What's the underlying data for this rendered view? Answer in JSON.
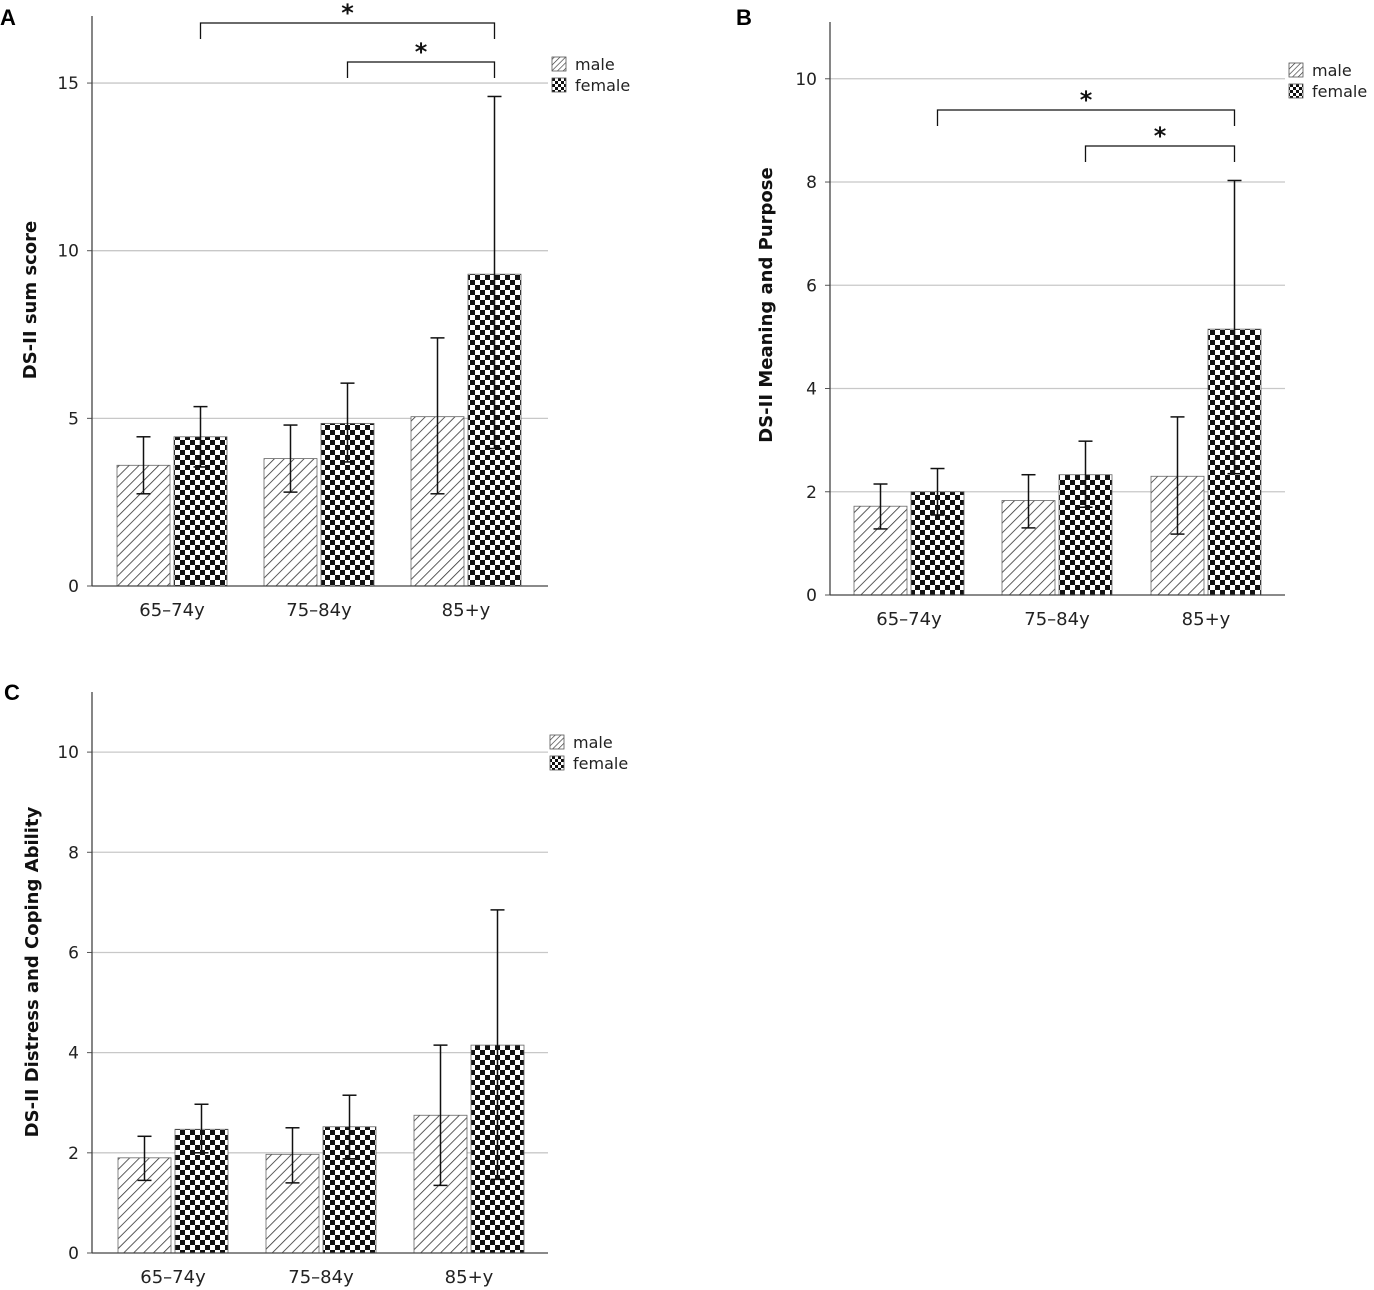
{
  "chart_data": [
    {
      "panel_label": "A",
      "type": "bar",
      "ylabel": "DS-II sum score",
      "categories": [
        "65–74y",
        "75–84y",
        "85+y"
      ],
      "ylim": [
        0,
        17
      ],
      "yticks": [
        0,
        5,
        10,
        15
      ],
      "legend": [
        "male",
        "female"
      ],
      "series": [
        {
          "name": "male",
          "pattern": "hatch",
          "values": [
            3.6,
            3.8,
            5.05
          ],
          "error_low": [
            2.75,
            2.8,
            2.75
          ],
          "error_high": [
            4.45,
            4.8,
            7.4
          ]
        },
        {
          "name": "female",
          "pattern": "checker",
          "values": [
            4.45,
            4.85,
            9.3
          ],
          "error_low": [
            3.55,
            3.7,
            4.1
          ],
          "error_high": [
            5.35,
            6.05,
            14.6
          ]
        }
      ],
      "significance": [
        {
          "from_category": 0,
          "to_category": 2,
          "label": "*"
        },
        {
          "from_category": 1,
          "to_category": 2,
          "label": "*"
        }
      ]
    },
    {
      "panel_label": "B",
      "type": "bar",
      "ylabel": "DS-II Meaning and Purpose",
      "categories": [
        "65–74y",
        "75–84y",
        "85+y"
      ],
      "ylim": [
        0,
        11.1
      ],
      "yticks": [
        0,
        2,
        4,
        6,
        8,
        10
      ],
      "legend": [
        "male",
        "female"
      ],
      "series": [
        {
          "name": "male",
          "pattern": "hatch",
          "values": [
            1.72,
            1.83,
            2.3
          ],
          "error_low": [
            1.28,
            1.3,
            1.18
          ],
          "error_high": [
            2.15,
            2.33,
            3.45
          ]
        },
        {
          "name": "female",
          "pattern": "checker",
          "values": [
            2.0,
            2.33,
            5.15
          ],
          "error_low": [
            1.55,
            1.7,
            2.35
          ],
          "error_high": [
            2.45,
            2.98,
            8.03
          ]
        }
      ],
      "significance": [
        {
          "from_category": 0,
          "to_category": 2,
          "label": "*"
        },
        {
          "from_category": 1,
          "to_category": 2,
          "label": "*"
        }
      ]
    },
    {
      "panel_label": "C",
      "type": "bar",
      "ylabel": "DS-II Distress and Coping Ability",
      "categories": [
        "65–74y",
        "75–84y",
        "85+y"
      ],
      "ylim": [
        0,
        11.2
      ],
      "yticks": [
        0,
        2,
        4,
        6,
        8,
        10
      ],
      "legend": [
        "male",
        "female"
      ],
      "series": [
        {
          "name": "male",
          "pattern": "hatch",
          "values": [
            1.9,
            1.97,
            2.75
          ],
          "error_low": [
            1.45,
            1.4,
            1.35
          ],
          "error_high": [
            2.33,
            2.5,
            4.15
          ]
        },
        {
          "name": "female",
          "pattern": "checker",
          "values": [
            2.47,
            2.52,
            4.15
          ],
          "error_low": [
            2.0,
            1.88,
            1.47
          ],
          "error_high": [
            2.97,
            3.15,
            6.85
          ]
        }
      ],
      "significance": []
    }
  ]
}
